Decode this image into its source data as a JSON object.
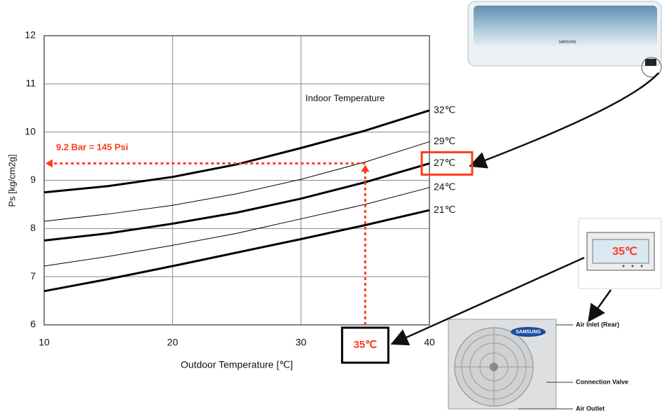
{
  "chart_data": {
    "type": "line",
    "x_label": "Outdoor Temperature [℃]",
    "y_label": "Ps [kg/cm2g]",
    "legend_title": "Indoor Temperature",
    "x": [
      10,
      15,
      20,
      25,
      30,
      35,
      40
    ],
    "xlim": [
      10,
      40
    ],
    "xticks": [
      10,
      20,
      30,
      40
    ],
    "ylim": [
      6,
      12
    ],
    "yticks": [
      6,
      7,
      8,
      9,
      10,
      11,
      12
    ],
    "grid": true,
    "series": [
      {
        "name": "32℃",
        "color": "#000000",
        "line_width": 3,
        "values": [
          8.75,
          8.88,
          9.07,
          9.33,
          9.67,
          10.03,
          10.45
        ]
      },
      {
        "name": "29℃",
        "color": "#000000",
        "line_width": 1,
        "values": [
          8.15,
          8.3,
          8.48,
          8.72,
          9.02,
          9.38,
          9.8
        ]
      },
      {
        "name": "27℃",
        "color": "#000000",
        "line_width": 3,
        "values": [
          7.75,
          7.9,
          8.1,
          8.33,
          8.62,
          8.96,
          9.35
        ]
      },
      {
        "name": "24℃",
        "color": "#000000",
        "line_width": 1,
        "values": [
          7.22,
          7.42,
          7.65,
          7.9,
          8.2,
          8.5,
          8.85
        ]
      },
      {
        "name": "21℃",
        "color": "#000000",
        "line_width": 3,
        "values": [
          6.7,
          6.95,
          7.22,
          7.5,
          7.78,
          8.07,
          8.38
        ]
      }
    ],
    "highlight_series": 2,
    "annotation": {
      "label": "9.2 Bar = 145 Psi",
      "x": 35,
      "y": 9.35,
      "x_text": "35℃",
      "color": "#ff3b1a"
    }
  },
  "illustration": {
    "display": "35℃",
    "brand": "SAMSUNG",
    "labels": [
      "Air Inlet (Rear)",
      "Connection Valve",
      "Air Outlet"
    ]
  }
}
